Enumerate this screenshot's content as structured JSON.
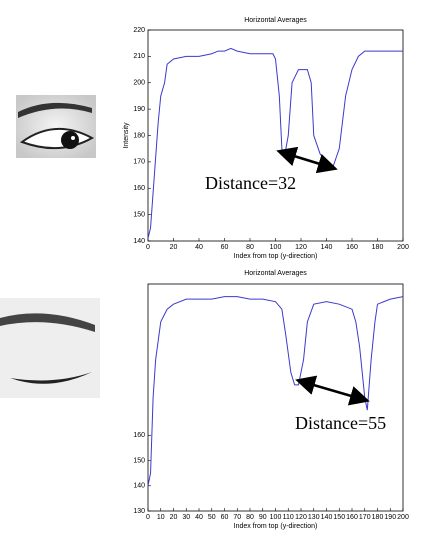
{
  "chart_data": [
    {
      "type": "line",
      "title": "Horizontal Averages",
      "xlabel": "Index from top (y-direction)",
      "ylabel": "Intensity",
      "annotation": "Distance=32",
      "color": "#3a3ad0",
      "x": [
        0,
        2,
        5,
        8,
        10,
        13,
        15,
        20,
        30,
        40,
        50,
        55,
        60,
        65,
        70,
        80,
        90,
        98,
        100,
        103,
        105,
        107,
        110,
        113,
        118,
        125,
        128,
        130,
        135,
        140,
        145,
        150,
        155,
        160,
        165,
        170,
        180,
        190,
        200
      ],
      "values": [
        141,
        145,
        165,
        185,
        195,
        200,
        207,
        209,
        210,
        210,
        211,
        212,
        212,
        213,
        212,
        211,
        211,
        211,
        209,
        195,
        175,
        172,
        180,
        200,
        205,
        205,
        200,
        180,
        173,
        170,
        168,
        175,
        195,
        205,
        210,
        212,
        212,
        212,
        212
      ],
      "xlim": [
        0,
        200
      ],
      "xticks": [
        0,
        20,
        40,
        60,
        80,
        100,
        120,
        140,
        160,
        180,
        200
      ],
      "ylim": [
        140,
        220
      ],
      "yticks": [
        140,
        150,
        160,
        170,
        180,
        190,
        200,
        210,
        220
      ]
    },
    {
      "type": "line",
      "title": "Horizontal Averages",
      "xlabel": "Index from top (y-direction)",
      "annotation": "Distance=55",
      "color": "#3a3ad0",
      "x": [
        0,
        2,
        4,
        6,
        10,
        15,
        20,
        30,
        40,
        50,
        60,
        70,
        80,
        90,
        100,
        105,
        108,
        112,
        115,
        118,
        122,
        125,
        130,
        140,
        150,
        160,
        163,
        166,
        170,
        172,
        175,
        178,
        180,
        190,
        200
      ],
      "values": [
        140,
        145,
        175,
        190,
        205,
        210,
        212,
        214,
        214,
        214,
        215,
        215,
        214,
        214,
        213,
        210,
        200,
        185,
        180,
        180,
        190,
        205,
        212,
        213,
        212,
        210,
        205,
        195,
        175,
        170,
        190,
        205,
        212,
        214,
        215
      ],
      "xlim": [
        0,
        200
      ],
      "xticks": [
        0,
        10,
        20,
        30,
        40,
        50,
        60,
        70,
        80,
        90,
        100,
        110,
        120,
        130,
        140,
        150,
        160,
        170,
        180,
        190,
        200
      ],
      "ylim": [
        130,
        220
      ],
      "yticks": [
        130,
        140,
        150,
        160
      ]
    }
  ]
}
